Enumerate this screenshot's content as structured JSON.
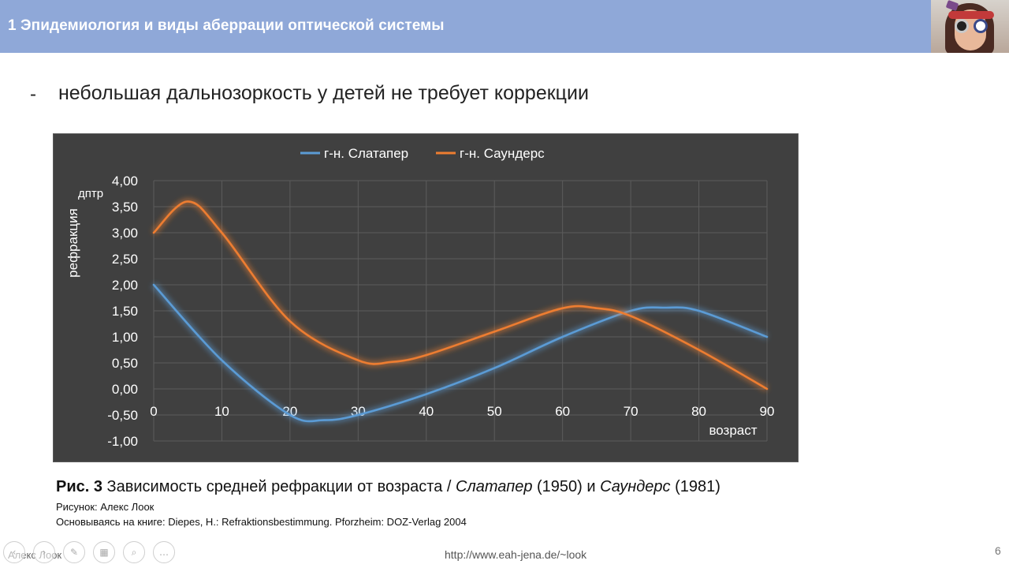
{
  "header": {
    "title": "1 Эпидемиология и виды аберрации оптической системы"
  },
  "bullet": {
    "dash": "-",
    "text": "небольшая дальнозоркость у детей не требует коррекции"
  },
  "chart_data": {
    "type": "line",
    "legend": {
      "position": "top-center"
    },
    "series": [
      {
        "name": "г-н. Слатапер",
        "color": "#5b9bd5",
        "x": [
          0,
          10,
          20,
          25,
          30,
          40,
          50,
          60,
          70,
          75,
          80,
          90
        ],
        "y": [
          2.0,
          0.55,
          -0.5,
          -0.6,
          -0.5,
          -0.1,
          0.4,
          1.0,
          1.5,
          1.56,
          1.5,
          1.0
        ]
      },
      {
        "name": "г-н. Саундерс",
        "color": "#ed7d31",
        "x": [
          0,
          5,
          10,
          20,
          30,
          35,
          40,
          50,
          60,
          65,
          70,
          80,
          90
        ],
        "y": [
          3.0,
          3.6,
          3.0,
          1.3,
          0.55,
          0.52,
          0.65,
          1.1,
          1.55,
          1.55,
          1.4,
          0.75,
          0.0
        ]
      }
    ],
    "x_axis": {
      "label": "возраст",
      "ticks": [
        "0",
        "10",
        "20",
        "30",
        "40",
        "50",
        "60",
        "70",
        "80",
        "90"
      ],
      "range": [
        0,
        90
      ]
    },
    "y_axis": {
      "label": "рефракция",
      "unit": "дптр",
      "ticks": [
        "4,00",
        "3,50",
        "3,00",
        "2,50",
        "2,00",
        "1,50",
        "1,00",
        "0,50",
        "0,00",
        "-0,50",
        "-1,00"
      ],
      "range": [
        -1.0,
        4.0
      ]
    },
    "grid": true
  },
  "caption": {
    "figure_label": "Рис. 3",
    "text_1": " Зависимость средней рефракции от возраста / ",
    "author_1": "Слатапер",
    "year_1": " (1950) и ",
    "author_2": "Саундерс",
    "year_2": " (1981)"
  },
  "credit": "Рисунок: Алекс Лоок",
  "source": "Основываясь на книге: Diepes, H.: Refraktionsbestimmung. Pforzheim: DOZ-Verlag 2004",
  "footer": {
    "url": "http://www.eah-jena.de/~look",
    "page": "6",
    "presenter": "Алекс Лоок"
  },
  "toolbar": {
    "buttons": [
      {
        "name": "prev-slide-icon",
        "glyph": "‹"
      },
      {
        "name": "next-slide-icon",
        "glyph": "›"
      },
      {
        "name": "pen-icon",
        "glyph": "✎"
      },
      {
        "name": "slides-grid-icon",
        "glyph": "▦"
      },
      {
        "name": "zoom-icon",
        "glyph": "⌕"
      },
      {
        "name": "more-options-icon",
        "glyph": "…"
      }
    ]
  }
}
